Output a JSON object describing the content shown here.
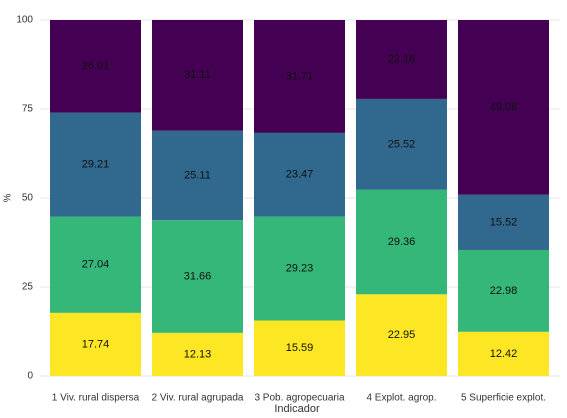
{
  "chart_data": {
    "type": "stacked-bar",
    "categories": [
      "1 Viv. rural dispersa",
      "2 Viv. rural agrupada",
      "3 Pob. agropecuaria",
      "4 Explot. agrop.",
      "5 Superficie explot."
    ],
    "series": [
      {
        "color": "#fde725",
        "values": [
          17.74,
          12.13,
          15.59,
          22.95,
          12.42
        ]
      },
      {
        "color": "#35b779",
        "values": [
          27.04,
          31.66,
          29.23,
          29.36,
          22.98
        ]
      },
      {
        "color": "#31688e",
        "values": [
          29.21,
          25.11,
          23.47,
          25.52,
          15.52
        ]
      },
      {
        "color": "#440154",
        "values": [
          26.01,
          31.11,
          31.71,
          22.16,
          49.08
        ]
      }
    ],
    "x_label": "Indicador",
    "y_label": "%",
    "ylim": [
      0,
      100
    ],
    "yticks": [
      0,
      25,
      50,
      75,
      100
    ],
    "grid": true
  }
}
